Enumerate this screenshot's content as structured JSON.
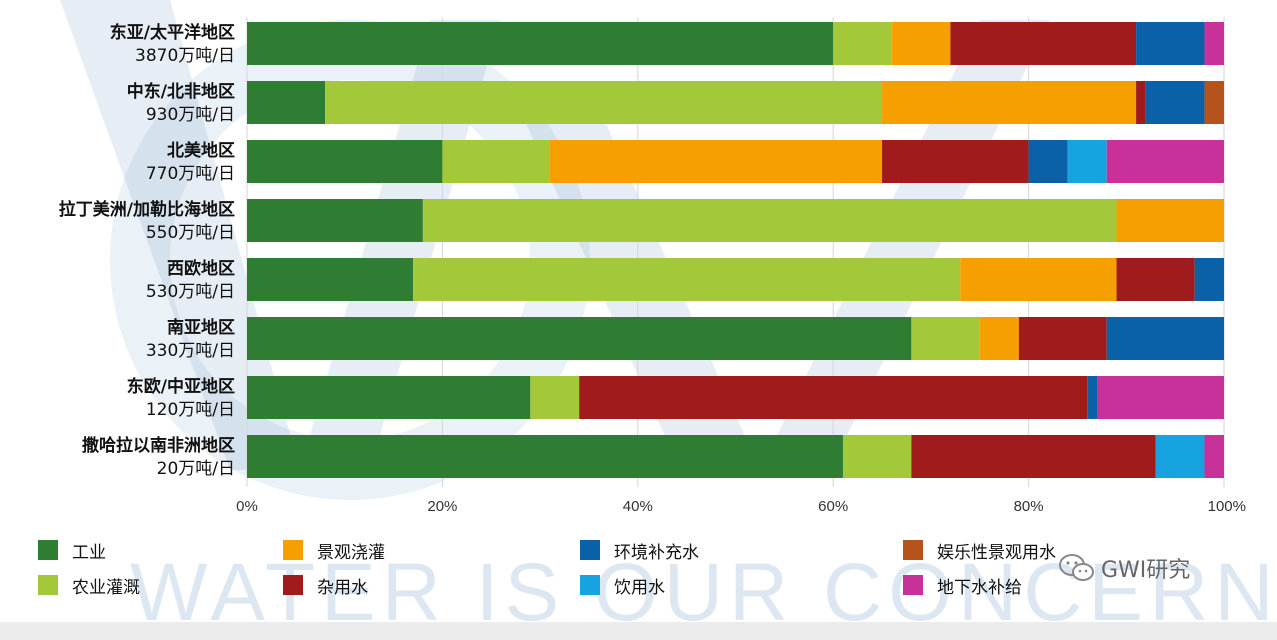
{
  "colors": {
    "工业": "#2e7d32",
    "农业灌溉": "#a3c93a",
    "景观浇灌": "#f5a000",
    "杂用水": "#a01c1c",
    "环境补充水": "#0a61a8",
    "饮用水": "#17a3e0",
    "娱乐性景观用水": "#b5531c",
    "地下水补给": "#c8309a"
  },
  "chart_data": {
    "type": "bar",
    "orientation": "horizontal",
    "stacked": true,
    "percent": true,
    "categories": [
      {
        "name": "东亚/太平洋地区",
        "volume": "3870万吨/日"
      },
      {
        "name": "中东/北非地区",
        "volume": "930万吨/日"
      },
      {
        "name": "北美地区",
        "volume": "770万吨/日"
      },
      {
        "name": "拉丁美洲/加勒比海地区",
        "volume": "550万吨/日"
      },
      {
        "name": "西欧地区",
        "volume": "530万吨/日"
      },
      {
        "name": "南亚地区",
        "volume": "330万吨/日"
      },
      {
        "name": "东欧/中亚地区",
        "volume": "120万吨/日"
      },
      {
        "name": "撒哈拉以南非洲地区",
        "volume": "20万吨/日"
      }
    ],
    "series": [
      {
        "name": "工业",
        "values": [
          60,
          8,
          20,
          18,
          17,
          68,
          29,
          61
        ]
      },
      {
        "name": "农业灌溉",
        "values": [
          6,
          57,
          11,
          71,
          56,
          7,
          5,
          7
        ]
      },
      {
        "name": "景观浇灌",
        "values": [
          6,
          26,
          34,
          11,
          16,
          4,
          0,
          0
        ]
      },
      {
        "name": "杂用水",
        "values": [
          19,
          1,
          15,
          0,
          8,
          9,
          52,
          25
        ]
      },
      {
        "name": "环境补充水",
        "values": [
          7,
          6,
          4,
          0,
          3,
          12,
          1,
          0
        ]
      },
      {
        "name": "饮用水",
        "values": [
          0,
          0,
          4,
          0,
          0,
          0,
          0,
          5
        ]
      },
      {
        "name": "娱乐性景观用水",
        "values": [
          0,
          2,
          0,
          0,
          0,
          0,
          0,
          0
        ]
      },
      {
        "name": "地下水补给",
        "values": [
          2,
          0,
          12,
          0,
          0,
          0,
          13,
          2
        ]
      }
    ],
    "xlim": [
      0,
      100
    ],
    "xticks": [
      "0%",
      "20%",
      "40%",
      "60%",
      "80%",
      "100%"
    ],
    "grid": true,
    "legend_position": "bottom"
  },
  "legend": {
    "items": [
      "工业",
      "景观浇灌",
      "环境补充水",
      "娱乐性景观用水",
      "农业灌溉",
      "杂用水",
      "饮用水",
      "地下水补给"
    ]
  },
  "watermark": {
    "text": "WATER IS OUR CONCERN",
    "brand": "GWI研究"
  }
}
